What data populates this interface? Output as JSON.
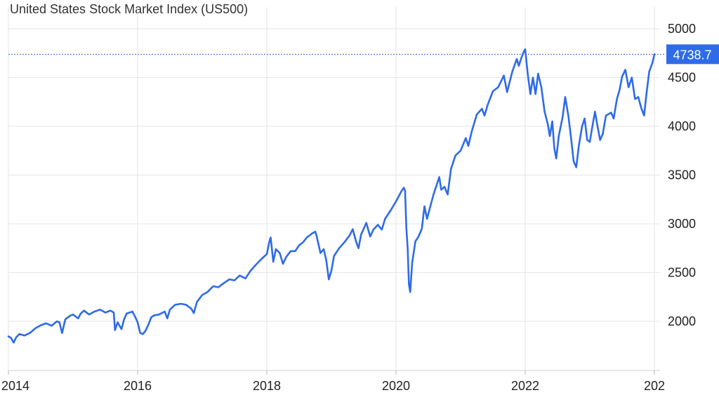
{
  "chart_data": {
    "type": "line",
    "title": "United States Stock Market Index (US500)",
    "xlabel": "",
    "ylabel": "",
    "x_tick_labels": [
      "2014",
      "2016",
      "2018",
      "2020",
      "2022",
      "202"
    ],
    "y_tick_labels": [
      "2000",
      "2500",
      "3000",
      "3500",
      "4000",
      "4500",
      "5000"
    ],
    "ylim": [
      1500,
      5250
    ],
    "xlim": [
      2014.0,
      2024.0
    ],
    "grid": true,
    "last_value_label": "4738.7",
    "last_value": 4738.7,
    "series": [
      {
        "color": "#2f6be8",
        "points": [
          [
            2014.0,
            1845
          ],
          [
            2014.04,
            1830
          ],
          [
            2014.08,
            1782
          ],
          [
            2014.12,
            1835
          ],
          [
            2014.17,
            1870
          ],
          [
            2014.25,
            1855
          ],
          [
            2014.33,
            1880
          ],
          [
            2014.42,
            1930
          ],
          [
            2014.5,
            1960
          ],
          [
            2014.58,
            1980
          ],
          [
            2014.67,
            1955
          ],
          [
            2014.75,
            2000
          ],
          [
            2014.79,
            1990
          ],
          [
            2014.83,
            1880
          ],
          [
            2014.88,
            2020
          ],
          [
            2014.96,
            2060
          ],
          [
            2015.0,
            2070
          ],
          [
            2015.04,
            2050
          ],
          [
            2015.08,
            2030
          ],
          [
            2015.12,
            2080
          ],
          [
            2015.17,
            2110
          ],
          [
            2015.25,
            2070
          ],
          [
            2015.33,
            2100
          ],
          [
            2015.42,
            2120
          ],
          [
            2015.5,
            2090
          ],
          [
            2015.58,
            2110
          ],
          [
            2015.63,
            2090
          ],
          [
            2015.65,
            1910
          ],
          [
            2015.69,
            1990
          ],
          [
            2015.75,
            1920
          ],
          [
            2015.79,
            2020
          ],
          [
            2015.83,
            2080
          ],
          [
            2015.92,
            2100
          ],
          [
            2015.96,
            2050
          ],
          [
            2016.0,
            1990
          ],
          [
            2016.04,
            1880
          ],
          [
            2016.08,
            1870
          ],
          [
            2016.12,
            1900
          ],
          [
            2016.17,
            1970
          ],
          [
            2016.21,
            2040
          ],
          [
            2016.25,
            2060
          ],
          [
            2016.33,
            2070
          ],
          [
            2016.42,
            2100
          ],
          [
            2016.46,
            2030
          ],
          [
            2016.5,
            2120
          ],
          [
            2016.58,
            2170
          ],
          [
            2016.67,
            2180
          ],
          [
            2016.75,
            2170
          ],
          [
            2016.83,
            2130
          ],
          [
            2016.87,
            2085
          ],
          [
            2016.92,
            2200
          ],
          [
            2017.0,
            2270
          ],
          [
            2017.08,
            2300
          ],
          [
            2017.17,
            2360
          ],
          [
            2017.25,
            2350
          ],
          [
            2017.33,
            2390
          ],
          [
            2017.42,
            2430
          ],
          [
            2017.5,
            2420
          ],
          [
            2017.58,
            2470
          ],
          [
            2017.67,
            2440
          ],
          [
            2017.75,
            2520
          ],
          [
            2017.83,
            2580
          ],
          [
            2017.92,
            2640
          ],
          [
            2018.0,
            2690
          ],
          [
            2018.04,
            2820
          ],
          [
            2018.06,
            2860
          ],
          [
            2018.1,
            2610
          ],
          [
            2018.14,
            2740
          ],
          [
            2018.2,
            2700
          ],
          [
            2018.25,
            2590
          ],
          [
            2018.3,
            2660
          ],
          [
            2018.37,
            2720
          ],
          [
            2018.44,
            2720
          ],
          [
            2018.5,
            2780
          ],
          [
            2018.56,
            2810
          ],
          [
            2018.62,
            2860
          ],
          [
            2018.7,
            2900
          ],
          [
            2018.75,
            2920
          ],
          [
            2018.77,
            2880
          ],
          [
            2018.83,
            2700
          ],
          [
            2018.88,
            2740
          ],
          [
            2018.92,
            2630
          ],
          [
            2018.96,
            2430
          ],
          [
            2019.0,
            2520
          ],
          [
            2019.04,
            2670
          ],
          [
            2019.12,
            2750
          ],
          [
            2019.2,
            2810
          ],
          [
            2019.28,
            2880
          ],
          [
            2019.33,
            2945
          ],
          [
            2019.38,
            2820
          ],
          [
            2019.42,
            2750
          ],
          [
            2019.46,
            2890
          ],
          [
            2019.54,
            3010
          ],
          [
            2019.6,
            2870
          ],
          [
            2019.65,
            2940
          ],
          [
            2019.72,
            2990
          ],
          [
            2019.78,
            2940
          ],
          [
            2019.83,
            3050
          ],
          [
            2019.92,
            3140
          ],
          [
            2020.0,
            3230
          ],
          [
            2020.04,
            3280
          ],
          [
            2020.08,
            3330
          ],
          [
            2020.12,
            3370
          ],
          [
            2020.14,
            3340
          ],
          [
            2020.16,
            2960
          ],
          [
            2020.18,
            2750
          ],
          [
            2020.2,
            2380
          ],
          [
            2020.22,
            2300
          ],
          [
            2020.25,
            2600
          ],
          [
            2020.3,
            2820
          ],
          [
            2020.35,
            2870
          ],
          [
            2020.4,
            2950
          ],
          [
            2020.44,
            3180
          ],
          [
            2020.48,
            3050
          ],
          [
            2020.52,
            3150
          ],
          [
            2020.58,
            3300
          ],
          [
            2020.67,
            3480
          ],
          [
            2020.7,
            3350
          ],
          [
            2020.75,
            3380
          ],
          [
            2020.8,
            3300
          ],
          [
            2020.85,
            3560
          ],
          [
            2020.92,
            3700
          ],
          [
            2021.0,
            3750
          ],
          [
            2021.08,
            3880
          ],
          [
            2021.12,
            3800
          ],
          [
            2021.17,
            3940
          ],
          [
            2021.25,
            4120
          ],
          [
            2021.33,
            4180
          ],
          [
            2021.37,
            4110
          ],
          [
            2021.42,
            4220
          ],
          [
            2021.5,
            4360
          ],
          [
            2021.58,
            4400
          ],
          [
            2021.67,
            4520
          ],
          [
            2021.72,
            4350
          ],
          [
            2021.8,
            4560
          ],
          [
            2021.87,
            4690
          ],
          [
            2021.9,
            4620
          ],
          [
            2021.94,
            4700
          ],
          [
            2021.98,
            4770
          ],
          [
            2022.0,
            4790
          ],
          [
            2022.04,
            4530
          ],
          [
            2022.08,
            4330
          ],
          [
            2022.12,
            4500
          ],
          [
            2022.16,
            4330
          ],
          [
            2022.2,
            4540
          ],
          [
            2022.25,
            4400
          ],
          [
            2022.3,
            4150
          ],
          [
            2022.35,
            4020
          ],
          [
            2022.38,
            3900
          ],
          [
            2022.42,
            4050
          ],
          [
            2022.45,
            3780
          ],
          [
            2022.48,
            3670
          ],
          [
            2022.52,
            3900
          ],
          [
            2022.58,
            4100
          ],
          [
            2022.62,
            4300
          ],
          [
            2022.67,
            4100
          ],
          [
            2022.71,
            3880
          ],
          [
            2022.75,
            3640
          ],
          [
            2022.79,
            3580
          ],
          [
            2022.83,
            3800
          ],
          [
            2022.88,
            4000
          ],
          [
            2022.92,
            4080
          ],
          [
            2022.96,
            3860
          ],
          [
            2023.0,
            3840
          ],
          [
            2023.04,
            4000
          ],
          [
            2023.08,
            4150
          ],
          [
            2023.12,
            4000
          ],
          [
            2023.16,
            3860
          ],
          [
            2023.2,
            3920
          ],
          [
            2023.25,
            4110
          ],
          [
            2023.33,
            4140
          ],
          [
            2023.37,
            4080
          ],
          [
            2023.42,
            4280
          ],
          [
            2023.46,
            4370
          ],
          [
            2023.5,
            4510
          ],
          [
            2023.55,
            4580
          ],
          [
            2023.6,
            4400
          ],
          [
            2023.65,
            4500
          ],
          [
            2023.7,
            4280
          ],
          [
            2023.75,
            4300
          ],
          [
            2023.8,
            4180
          ],
          [
            2023.84,
            4110
          ],
          [
            2023.88,
            4350
          ],
          [
            2023.92,
            4560
          ],
          [
            2023.97,
            4650
          ],
          [
            2024.0,
            4738.7
          ]
        ]
      }
    ]
  }
}
